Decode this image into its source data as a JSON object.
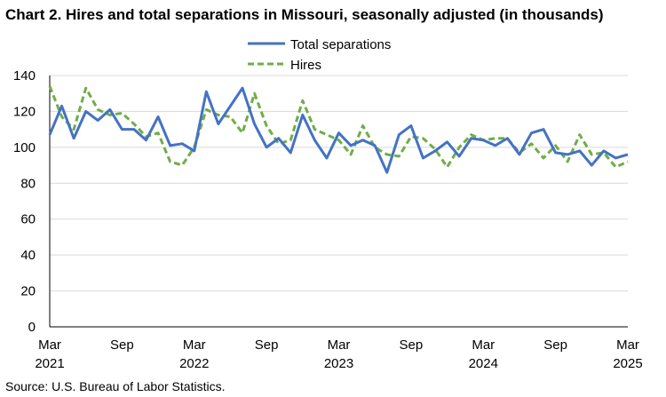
{
  "chart_data": {
    "type": "line",
    "title": "Chart 2. Hires and total separations in Missouri, seasonally adjusted (in thousands)",
    "source": "Source: U.S. Bureau of Labor Statistics.",
    "ylim": [
      0,
      140
    ],
    "yticks": [
      0,
      20,
      40,
      60,
      80,
      100,
      120,
      140
    ],
    "grid": "horizontal",
    "legend_position": "top-center",
    "x_tick_labels": [
      {
        "index": 0,
        "month": "Mar",
        "year": "2021"
      },
      {
        "index": 6,
        "month": "Sep",
        "year": ""
      },
      {
        "index": 12,
        "month": "Mar",
        "year": "2022"
      },
      {
        "index": 18,
        "month": "Sep",
        "year": ""
      },
      {
        "index": 24,
        "month": "Mar",
        "year": "2023"
      },
      {
        "index": 30,
        "month": "Sep",
        "year": ""
      },
      {
        "index": 36,
        "month": "Mar",
        "year": "2024"
      },
      {
        "index": 42,
        "month": "Sep",
        "year": ""
      },
      {
        "index": 48,
        "month": "Mar",
        "year": "2025"
      }
    ],
    "series": [
      {
        "name": "Total separations",
        "color": "#4472C4",
        "style": "solid",
        "values": [
          107,
          123,
          105,
          120,
          115,
          121,
          110,
          110,
          104,
          117,
          101,
          102,
          98,
          131,
          113,
          123,
          133,
          113,
          100,
          105,
          97,
          118,
          104,
          94,
          108,
          101,
          104,
          101,
          86,
          107,
          112,
          94,
          98,
          103,
          95,
          105,
          104,
          101,
          105,
          96,
          108,
          110,
          97,
          96,
          98,
          90,
          98,
          94,
          96
        ]
      },
      {
        "name": "Hires",
        "color": "#70AD47",
        "style": "dashed",
        "values": [
          134,
          117,
          110,
          133,
          121,
          118,
          119,
          113,
          106,
          108,
          92,
          90,
          100,
          121,
          118,
          117,
          108,
          130,
          112,
          102,
          104,
          126,
          110,
          107,
          104,
          96,
          112,
          100,
          96,
          95,
          106,
          105,
          99,
          89,
          100,
          107,
          104,
          105,
          105,
          97,
          102,
          94,
          101,
          92,
          107,
          96,
          97,
          89,
          92
        ]
      }
    ]
  }
}
